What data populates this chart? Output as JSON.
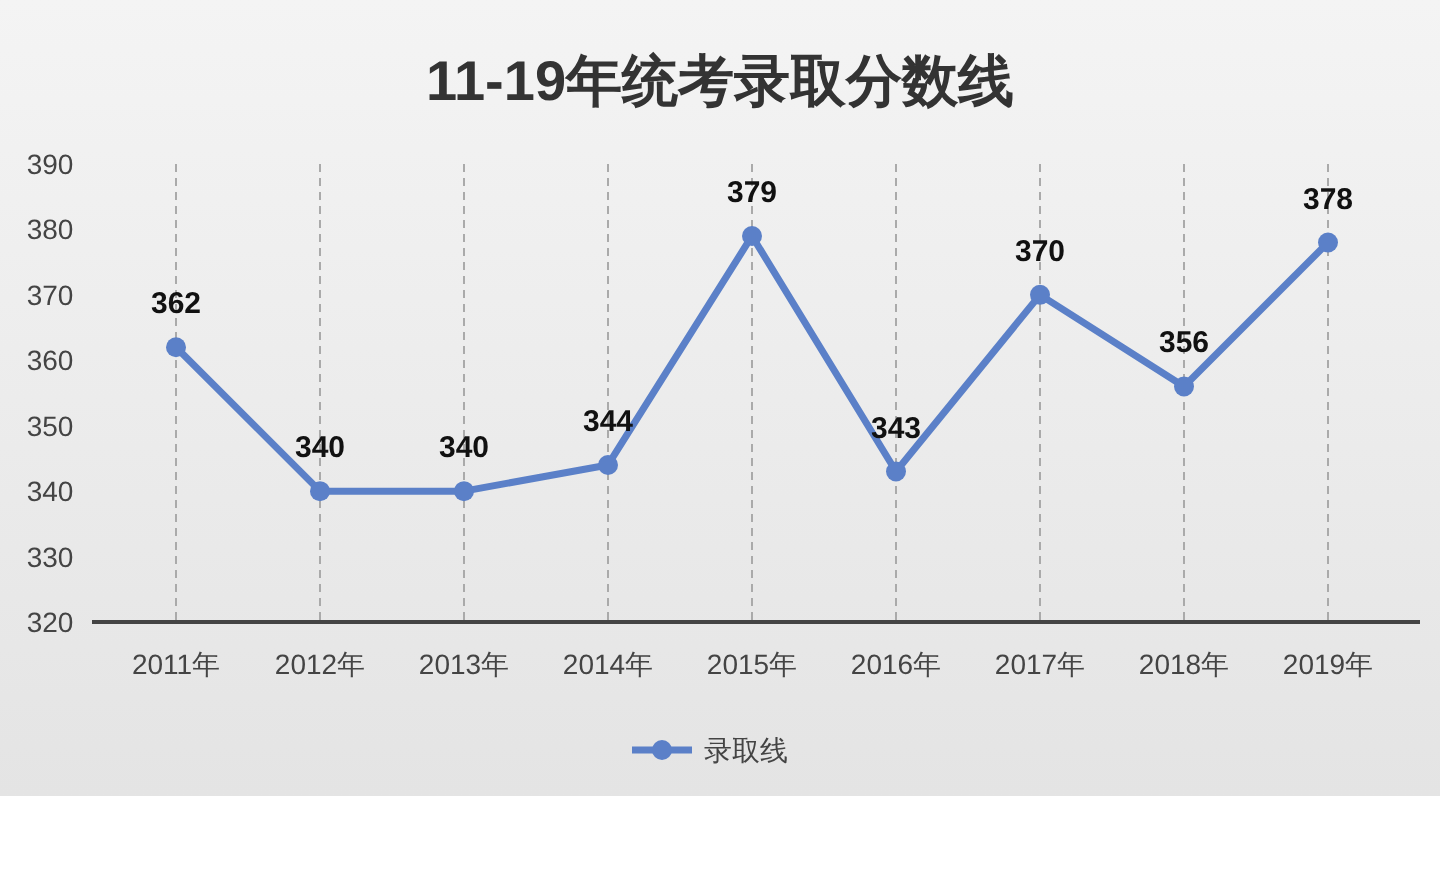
{
  "chart_data": {
    "type": "line",
    "title": "11-19年统考录取分数线",
    "categories": [
      "2011年",
      "2012年",
      "2013年",
      "2014年",
      "2015年",
      "2016年",
      "2017年",
      "2018年",
      "2019年"
    ],
    "series": [
      {
        "name": "录取线",
        "color": "#5b80c8",
        "values": [
          362,
          340,
          340,
          344,
          379,
          343,
          370,
          356,
          378
        ]
      }
    ],
    "ylim": [
      320,
      390
    ],
    "yticks": [
      320,
      330,
      340,
      350,
      360,
      370,
      380,
      390
    ],
    "grid": "x",
    "legend": "bottom",
    "marker": "circle",
    "line_style": "solid",
    "data_labels": true
  }
}
